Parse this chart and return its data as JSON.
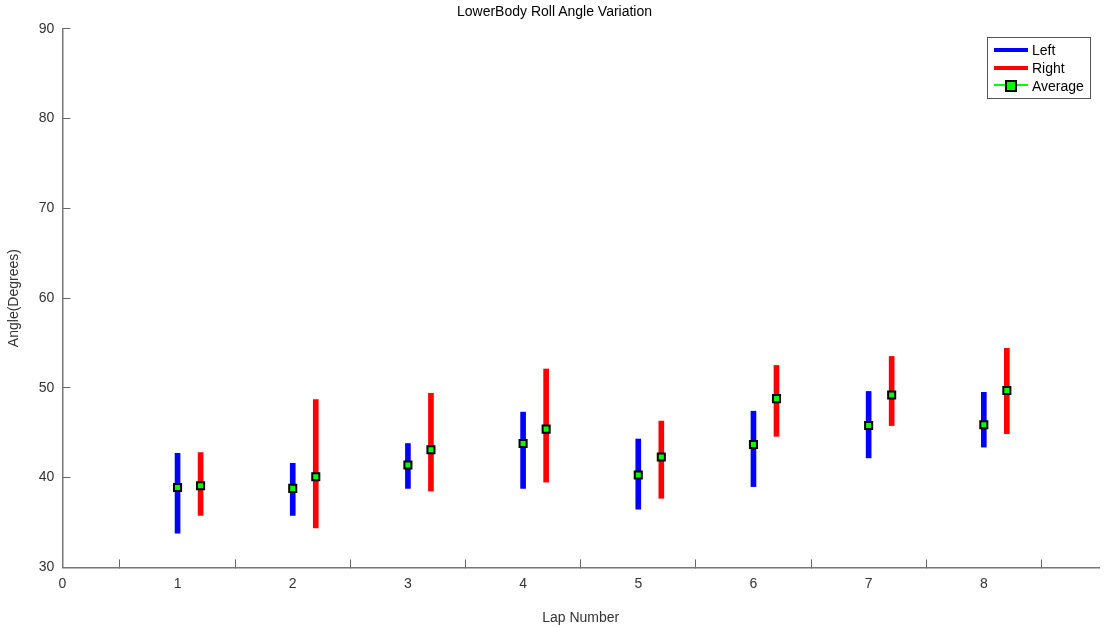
{
  "chart_data": {
    "type": "scatter",
    "title": "LowerBody Roll Angle Variation",
    "xlabel": "Lap Number",
    "ylabel": "Angle(Degrees)",
    "xlim": [
      0,
      9
    ],
    "xticks": [
      0,
      1,
      2,
      3,
      4,
      5,
      6,
      7,
      8
    ],
    "ylim": [
      30,
      90
    ],
    "yticks": [
      30,
      40,
      50,
      60,
      70,
      80,
      90
    ],
    "grid": false,
    "legend": "top right",
    "series": [
      {
        "name": "Left",
        "type": "bar",
        "color": "#0000ff",
        "x": [
          1,
          2,
          3,
          4,
          5,
          6,
          7,
          8
        ],
        "base": [
          33.8,
          35.8,
          38.8,
          38.8,
          36.5,
          39.0,
          42.2,
          43.4
        ],
        "values": [
          8.9,
          5.8,
          5.0,
          8.5,
          7.8,
          8.4,
          7.4,
          6.1
        ]
      },
      {
        "name": "Right",
        "type": "bar",
        "color": "#ff0000",
        "x": [
          1.2,
          2.2,
          3.2,
          4.2,
          5.2,
          6.2,
          7.2,
          8.2
        ],
        "base": [
          35.8,
          34.4,
          38.5,
          39.5,
          37.7,
          44.6,
          45.8,
          44.9
        ],
        "values": [
          7.0,
          14.3,
          10.9,
          12.6,
          8.6,
          7.9,
          7.7,
          9.5
        ]
      },
      {
        "name": "Average",
        "marker": "square",
        "color": "#00ff00",
        "x": [
          1,
          1.2,
          2,
          2.2,
          3,
          3.2,
          4,
          4.2,
          5,
          5.2,
          6,
          6.2,
          7,
          7.2,
          8,
          8.2
        ],
        "values": [
          38.9,
          39.1,
          38.8,
          40.1,
          41.4,
          43.1,
          43.8,
          45.4,
          40.3,
          42.3,
          43.7,
          48.8,
          45.8,
          49.2,
          45.9,
          49.7
        ]
      }
    ]
  }
}
